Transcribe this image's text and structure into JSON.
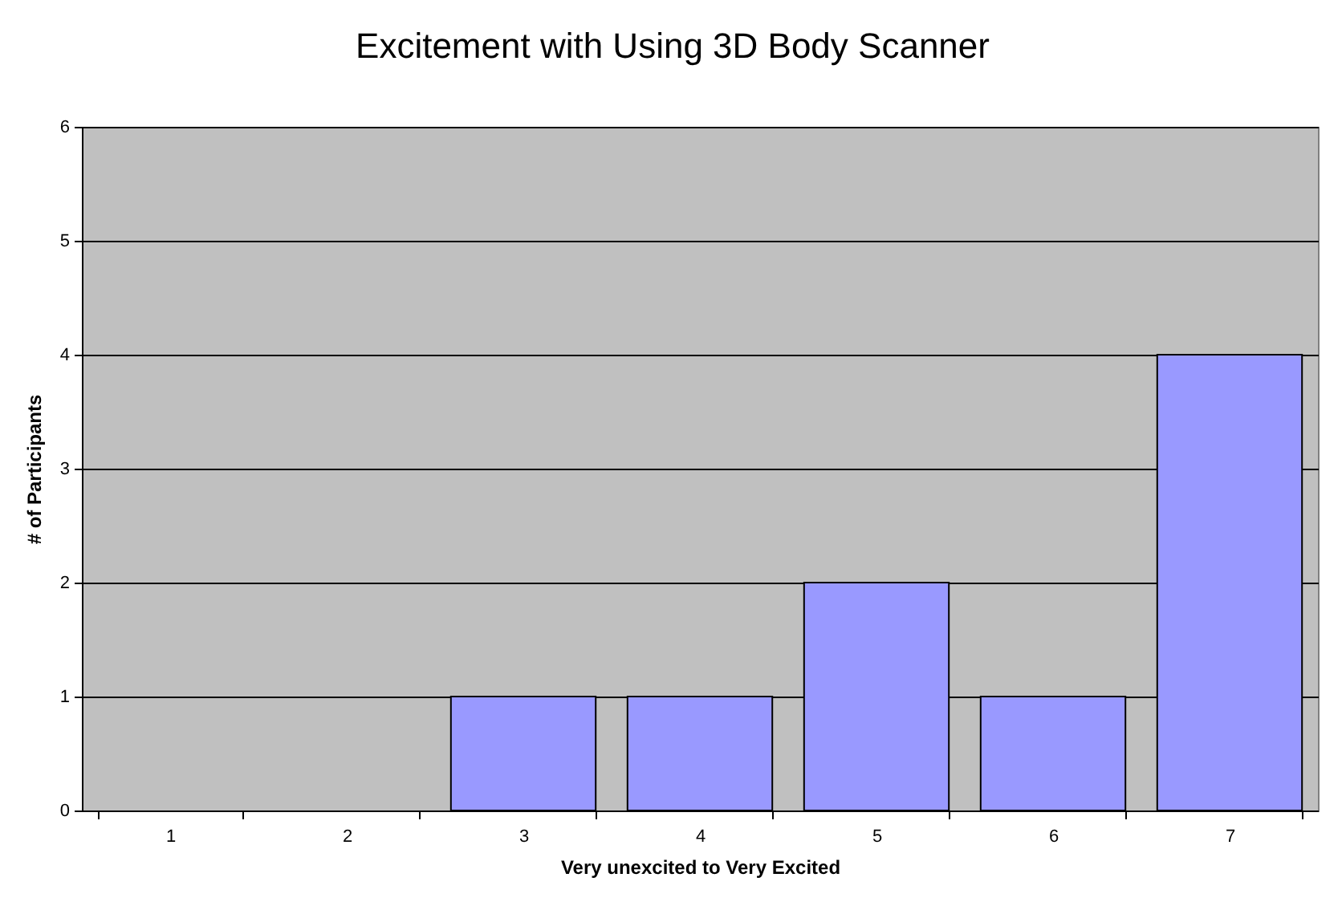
{
  "chart_data": {
    "type": "bar",
    "title": "Excitement with Using 3D Body Scanner",
    "xlabel": "Very unexcited to Very Excited",
    "ylabel": "# of Participants",
    "categories": [
      "1",
      "2",
      "3",
      "4",
      "5",
      "6",
      "7"
    ],
    "values": [
      0,
      0,
      1,
      1,
      2,
      1,
      4
    ],
    "color": "#9999ff",
    "ylim": [
      0,
      6
    ],
    "yticks": [
      0,
      1,
      2,
      3,
      4,
      5,
      6
    ],
    "grid": "y"
  }
}
